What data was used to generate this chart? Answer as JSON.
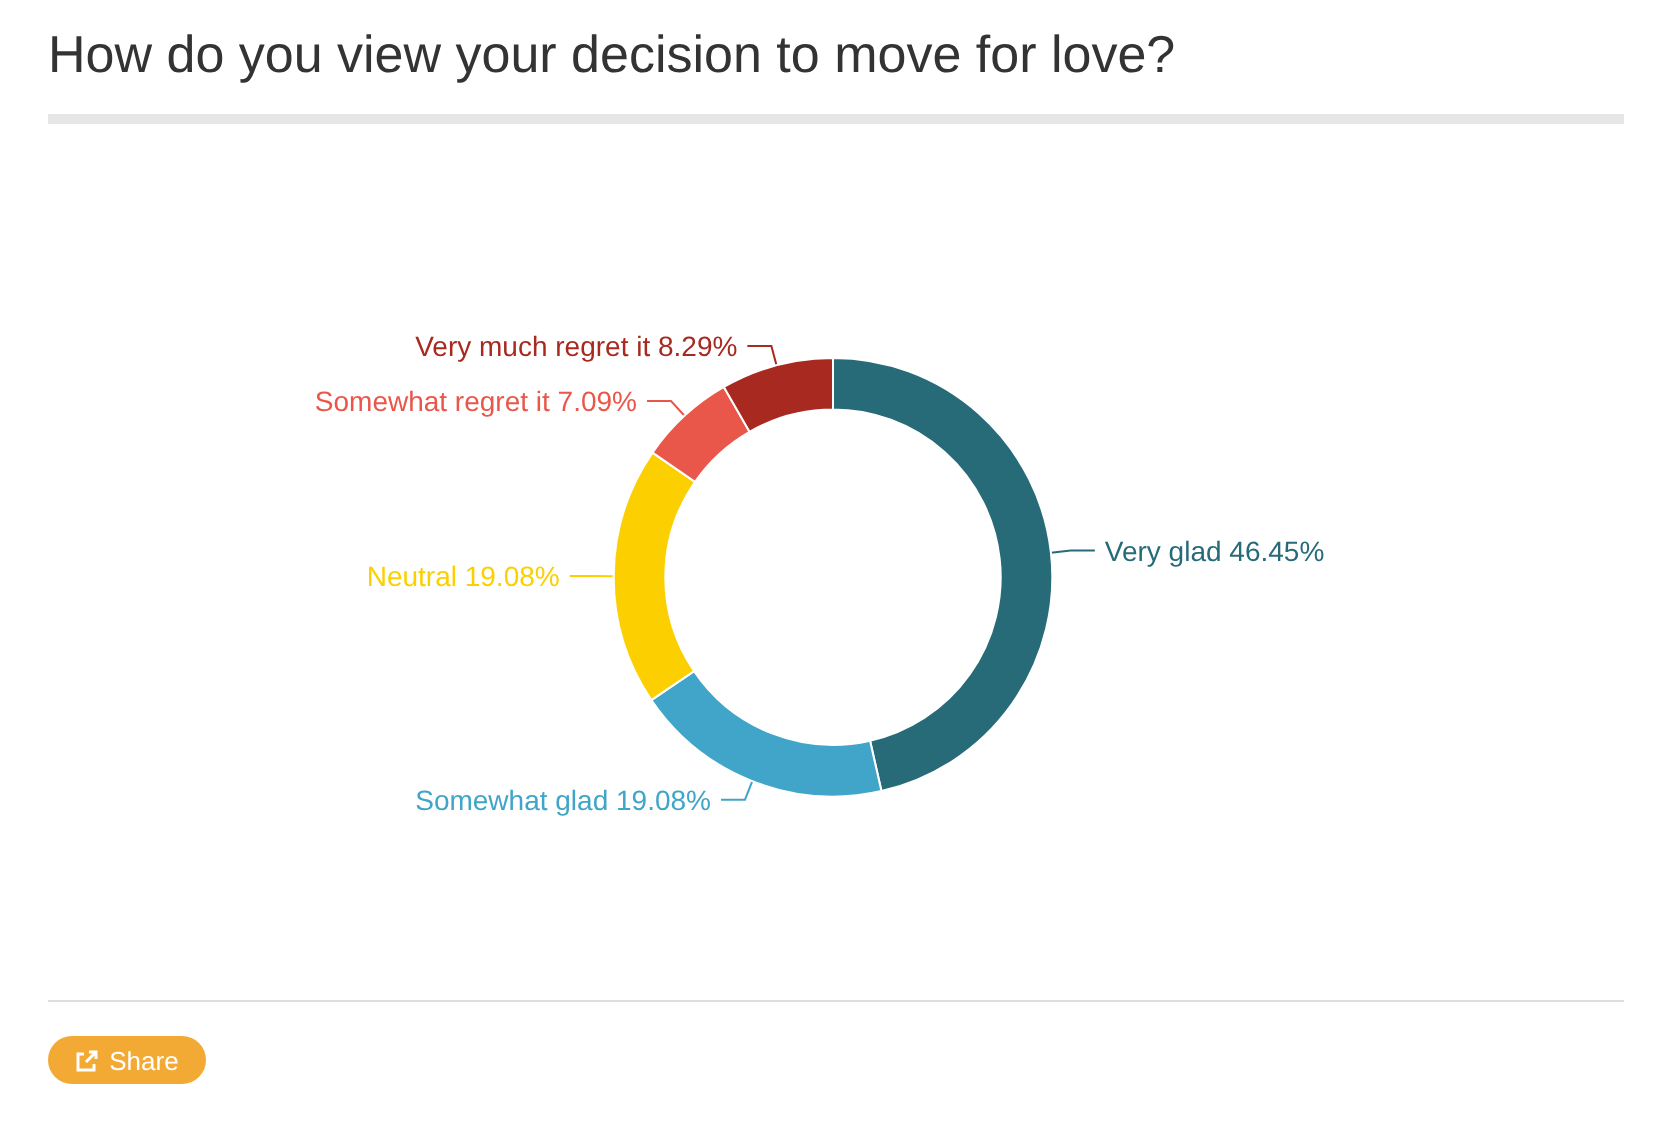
{
  "chart_data": {
    "type": "donut",
    "title": "How do you view your decision to move for love?",
    "categories": [
      "Very glad",
      "Somewhat glad",
      "Neutral",
      "Somewhat regret it",
      "Very much regret it"
    ],
    "values": [
      46.45,
      19.08,
      19.08,
      7.09,
      8.29
    ],
    "value_labels": [
      "46.45%",
      "19.08%",
      "19.08%",
      "7.09%",
      "8.29%"
    ],
    "colors": [
      "#276b79",
      "#40a5c8",
      "#fcd000",
      "#e9574b",
      "#a8291f"
    ],
    "legend": false,
    "annotations": [
      "Share"
    ]
  }
}
